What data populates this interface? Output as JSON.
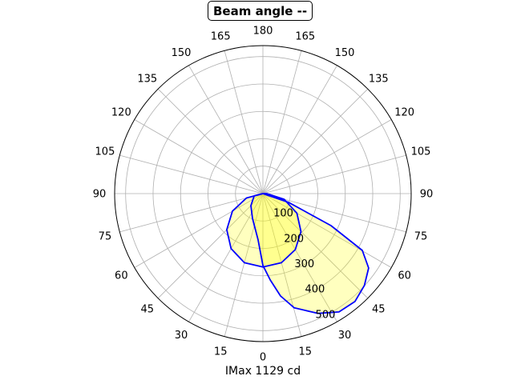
{
  "chart_data": {
    "type": "polar-line",
    "title": "Beam angle --",
    "xlabel": "IMax 1129 cd",
    "angle_zero": "bottom",
    "angle_tick_labels": [
      "0",
      "15",
      "30",
      "45",
      "60",
      "75",
      "90",
      "105",
      "120",
      "135",
      "150",
      "165",
      "180"
    ],
    "radial_ticks": [
      100,
      200,
      300,
      400,
      500
    ],
    "rlim": [
      0,
      540
    ],
    "grid": true,
    "fill_color": "#ffff00",
    "line_color": "#0000ff",
    "series": [
      {
        "angles": [
          -90,
          -75,
          -60,
          -45,
          -30,
          -15,
          0,
          15,
          30,
          45,
          60,
          75,
          90
        ],
        "values": [
          0,
          62,
          128,
          186,
          232,
          261,
          268,
          261,
          236,
          196,
          143,
          80,
          14
        ]
      },
      {
        "angles": [
          -90,
          -75,
          -45,
          -22.8,
          -5.9,
          0,
          4.8,
          9.75,
          15.3,
          24.7,
          32.7,
          40.4,
          47.8,
          54.8,
          60.2,
          64.8,
          71,
          90
        ],
        "values": [
          0,
          33,
          62,
          98,
          170,
          262,
          316,
          379,
          432,
          481,
          513,
          517,
          499,
          471,
          417,
          274,
          99,
          0
        ]
      }
    ]
  }
}
